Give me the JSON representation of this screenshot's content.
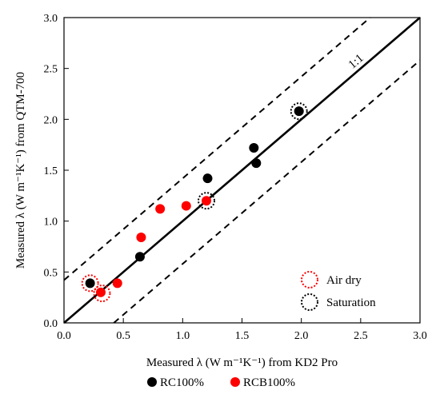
{
  "chart_data": {
    "type": "scatter",
    "xlabel": "Measured λ (W m⁻¹K⁻¹) from KD2 Pro",
    "ylabel": "Measured λ (W m⁻¹K⁻¹) from QTM-700",
    "xlim": [
      0,
      3.0
    ],
    "ylim": [
      0,
      3.0
    ],
    "xticks": [
      "0.0",
      "0.5",
      "1.0",
      "1.5",
      "2.0",
      "2.5",
      "3.0"
    ],
    "yticks": [
      "0.0",
      "0.5",
      "1.0",
      "1.5",
      "2.0",
      "2.5",
      "3.0"
    ],
    "grid": false,
    "reference_line_label": "1:1",
    "band_offset": 0.42,
    "series": [
      {
        "name": "RC100%",
        "color": "#000000",
        "points": [
          {
            "x": 0.22,
            "y": 0.39
          },
          {
            "x": 0.64,
            "y": 0.65
          },
          {
            "x": 1.21,
            "y": 1.42
          },
          {
            "x": 1.6,
            "y": 1.72
          },
          {
            "x": 1.62,
            "y": 1.57
          },
          {
            "x": 1.98,
            "y": 2.08
          }
        ]
      },
      {
        "name": "RCB100%",
        "color": "#ff0000",
        "points": [
          {
            "x": 0.31,
            "y": 0.3
          },
          {
            "x": 0.45,
            "y": 0.39
          },
          {
            "x": 0.65,
            "y": 0.84
          },
          {
            "x": 0.81,
            "y": 1.12
          },
          {
            "x": 1.03,
            "y": 1.15
          },
          {
            "x": 1.2,
            "y": 1.2
          }
        ]
      }
    ],
    "condition_markers": [
      {
        "name": "Air dry",
        "color": "#ff0000",
        "points": [
          {
            "x": 0.22,
            "y": 0.39
          },
          {
            "x": 0.32,
            "y": 0.29
          }
        ]
      },
      {
        "name": "Saturation",
        "color": "#000000",
        "points": [
          {
            "x": 1.2,
            "y": 1.2
          },
          {
            "x": 1.98,
            "y": 2.08
          }
        ]
      }
    ],
    "legend_placement": "bottom"
  }
}
